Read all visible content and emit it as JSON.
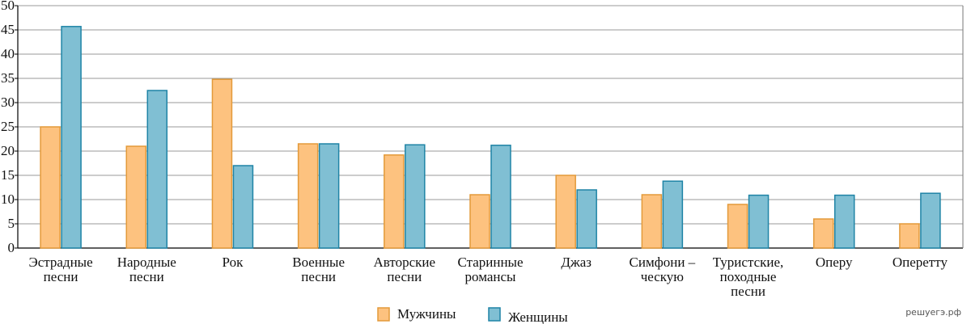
{
  "chart_data": {
    "type": "bar",
    "categories": [
      "Эстрадные\nпесни",
      "Народные\nпесни",
      "Рок",
      "Военные\nпесни",
      "Авторские\nпесни",
      "Старинные\nромансы",
      "Джаз",
      "Симфони –\nческую",
      "Туристские,\nпоходные\nпесни",
      "Оперу",
      "Оперетту"
    ],
    "series": [
      {
        "name": "Мужчины",
        "color": "#fdc27f",
        "stroke": "#e39a3a",
        "values": [
          25,
          21,
          34.8,
          21.5,
          19.2,
          11,
          15,
          11,
          9,
          6,
          5
        ]
      },
      {
        "name": "Женщины",
        "color": "#80bfd3",
        "stroke": "#1f84a6",
        "values": [
          45.7,
          32.5,
          17,
          21.5,
          21.3,
          21.2,
          12,
          13.8,
          10.9,
          10.9,
          11.3
        ]
      }
    ],
    "ylim": [
      0,
      50
    ],
    "yticks": [
      0,
      5,
      10,
      15,
      20,
      25,
      30,
      35,
      40,
      45,
      50
    ],
    "grid": true,
    "legend_position": "bottom",
    "watermark": "решуегэ.рф"
  }
}
